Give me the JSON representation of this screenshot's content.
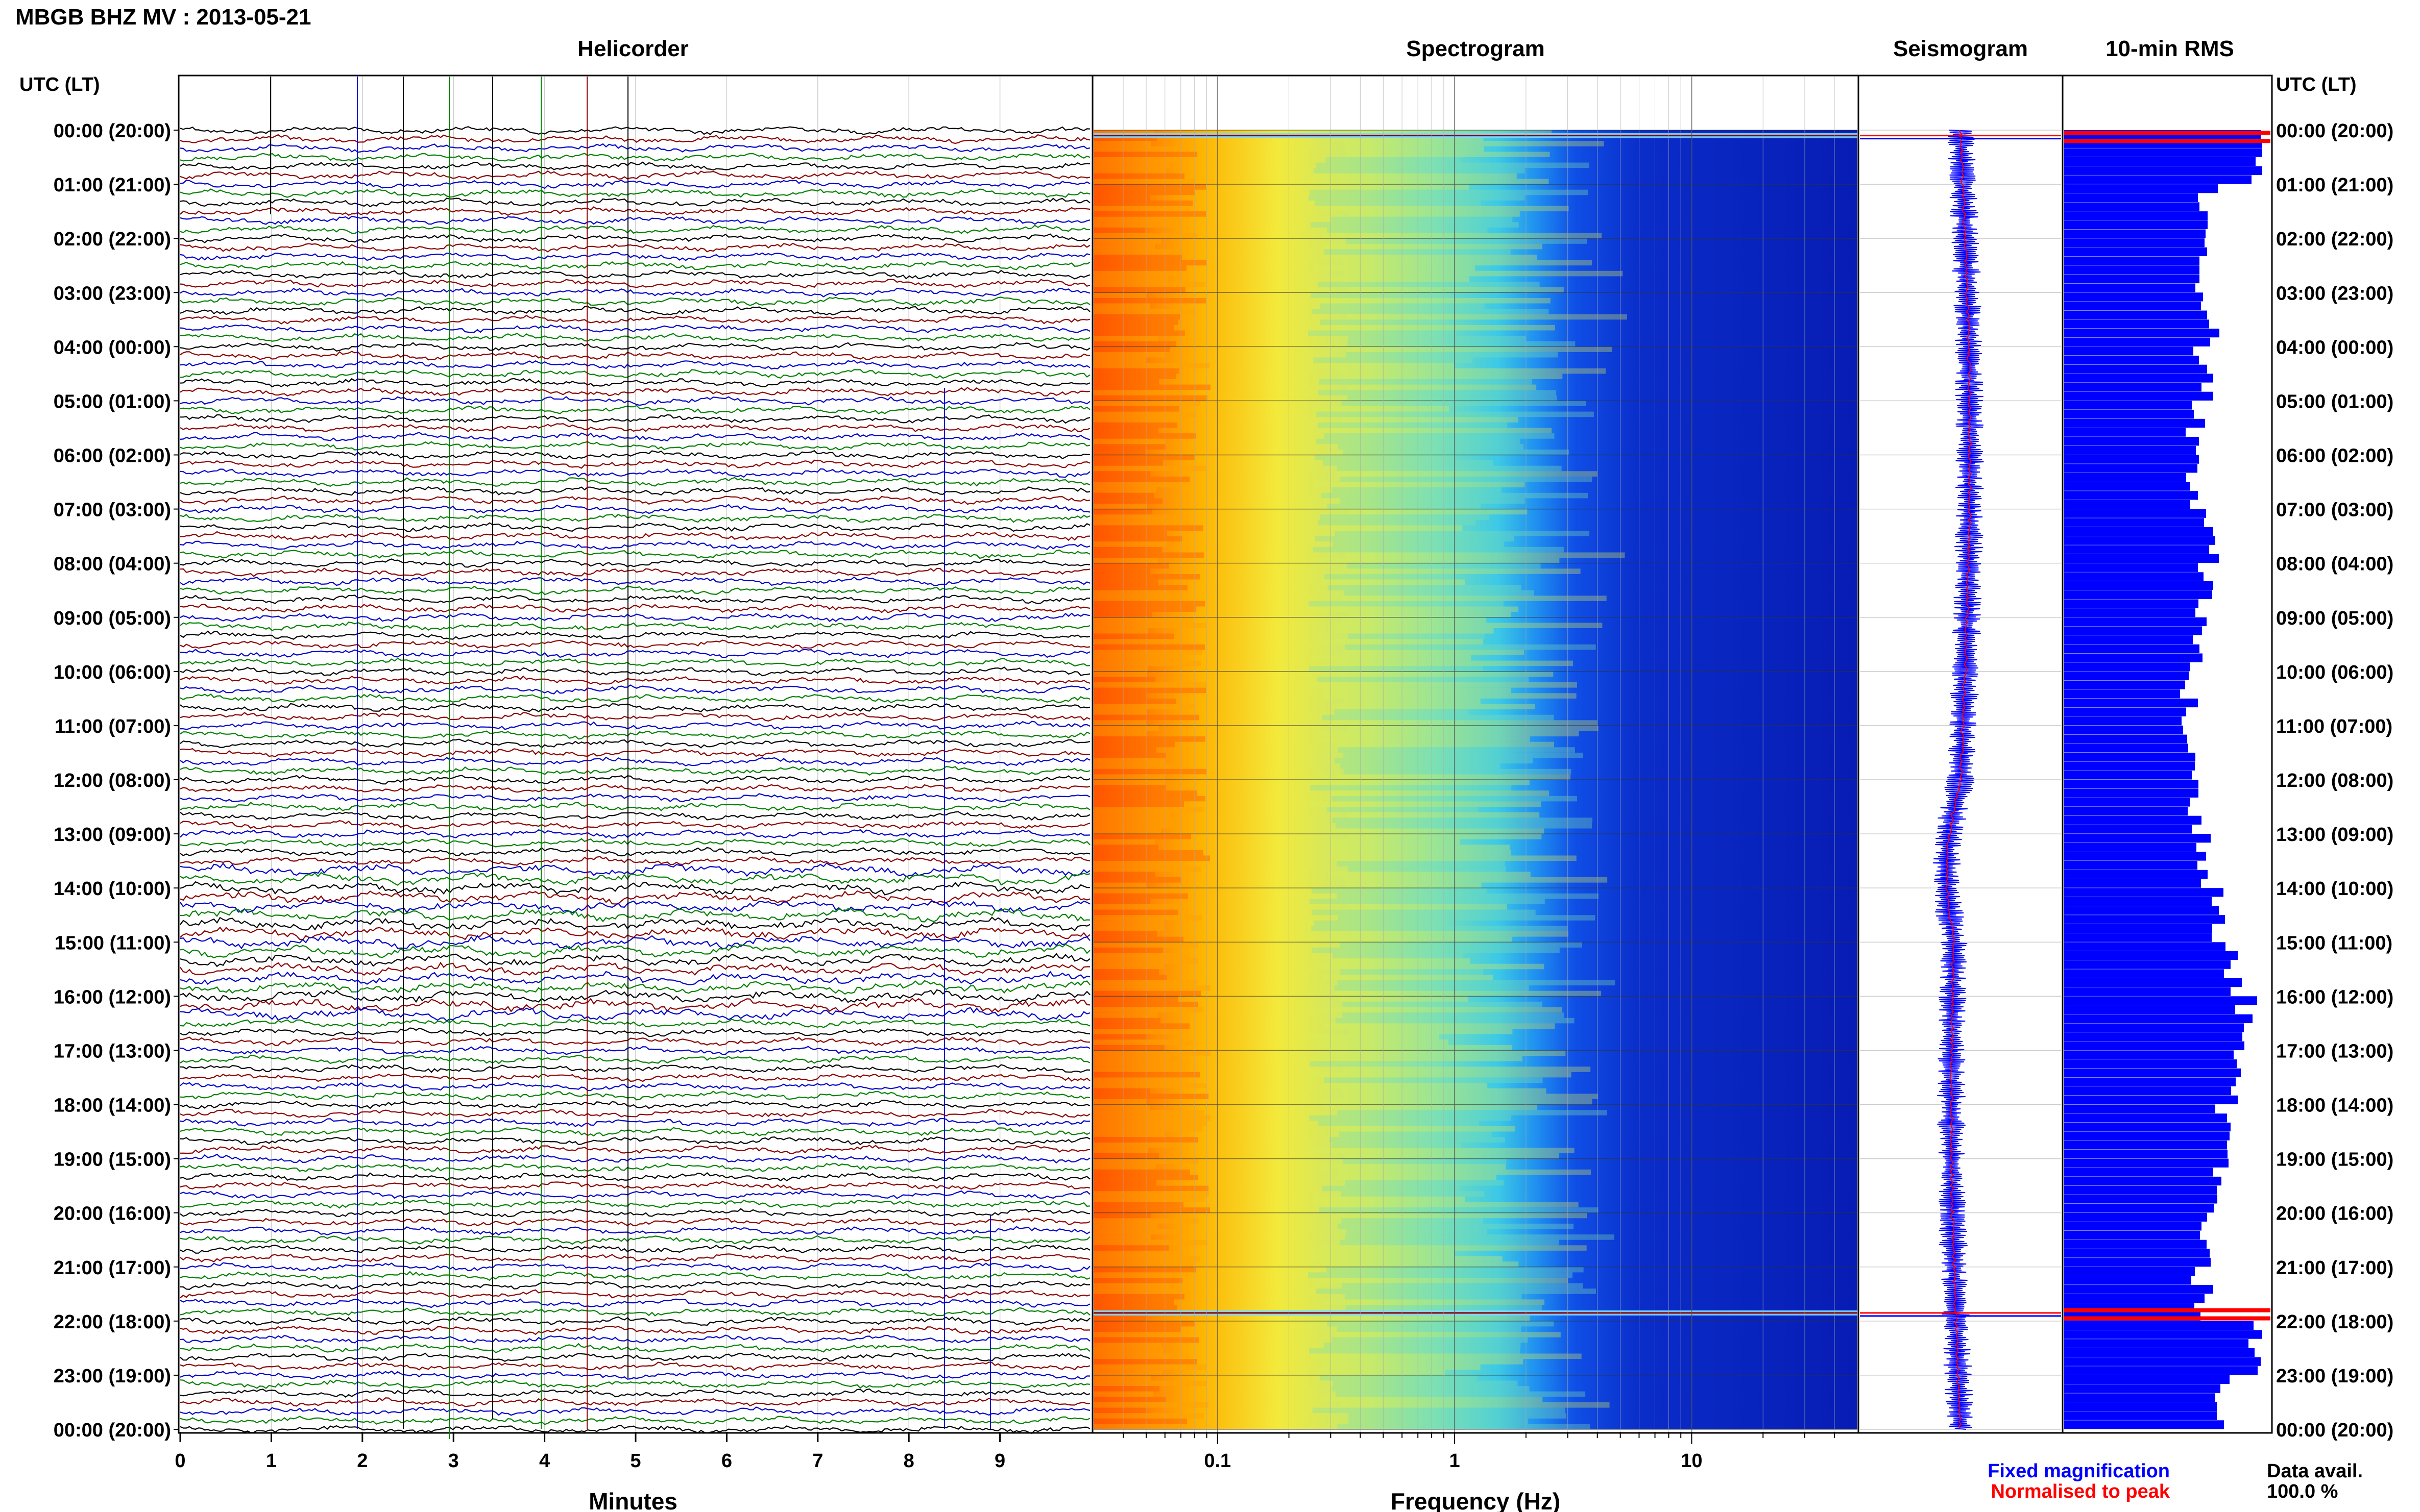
{
  "header": {
    "station_title": "MBGB BHZ MV : 2013-05-21"
  },
  "panels": {
    "helicorder": "Helicorder",
    "spectrogram": "Spectrogram",
    "seismogram": "Seismogram",
    "rms": "10-min RMS"
  },
  "time_axis": {
    "title": "UTC (LT)",
    "labels": [
      "00:00 (20:00)",
      "01:00 (21:00)",
      "02:00 (22:00)",
      "03:00 (23:00)",
      "04:00 (00:00)",
      "05:00 (01:00)",
      "06:00 (02:00)",
      "07:00 (03:00)",
      "08:00 (04:00)",
      "09:00 (05:00)",
      "10:00 (06:00)",
      "11:00 (07:00)",
      "12:00 (08:00)",
      "13:00 (09:00)",
      "14:00 (10:00)",
      "15:00 (11:00)",
      "16:00 (12:00)",
      "17:00 (13:00)",
      "18:00 (14:00)",
      "19:00 (15:00)",
      "20:00 (16:00)",
      "21:00 (17:00)",
      "22:00 (18:00)",
      "23:00 (19:00)",
      "00:00 (20:00)"
    ]
  },
  "minutes_axis": {
    "title": "Minutes",
    "ticks": [
      "0",
      "1",
      "2",
      "3",
      "4",
      "5",
      "6",
      "7",
      "8",
      "9"
    ]
  },
  "frequency_axis": {
    "title": "Frequency (Hz)",
    "ticks": [
      "0.1",
      "1",
      "10"
    ]
  },
  "legend": {
    "fixed": "Fixed magnification",
    "normalised": "Normalised to peak",
    "fixed_color": "#0000ff",
    "normalised_color": "#ff0000"
  },
  "data_availability": {
    "label": "Data avail.",
    "value": "100.0 %"
  },
  "colors": {
    "trace_cycle": [
      "#000000",
      "#8b0000",
      "#0000cc",
      "#008000"
    ],
    "rms_bar": "#0000ff",
    "rms_peak": "#ff0000"
  },
  "chart_data": {
    "type": "heatmap",
    "title": "MBGB BHZ MV : 2013-05-21",
    "helicorder": {
      "minutes_per_line": 10,
      "xlim_minutes": [
        0,
        10
      ],
      "lines_per_hour": 6,
      "hours": 24
    },
    "spectrogram": {
      "xscale": "log",
      "xlim_hz": [
        0.03,
        50
      ],
      "dominant_energy_hz": [
        0.03,
        0.2
      ],
      "energy_event_hours": [
        0.1,
        21.85
      ]
    },
    "rms_10min": {
      "interval_minutes": 10,
      "hourly_relative": [
        1.0,
        0.72,
        0.68,
        0.74,
        0.7,
        0.66,
        0.64,
        0.74,
        0.72,
        0.66,
        0.62,
        0.64,
        0.66,
        0.72,
        0.8,
        0.86,
        0.92,
        0.86,
        0.82,
        0.8,
        0.72,
        0.7,
        0.95,
        0.78
      ],
      "peak_hours": [
        0.05,
        0.2,
        21.8,
        21.95
      ]
    }
  }
}
